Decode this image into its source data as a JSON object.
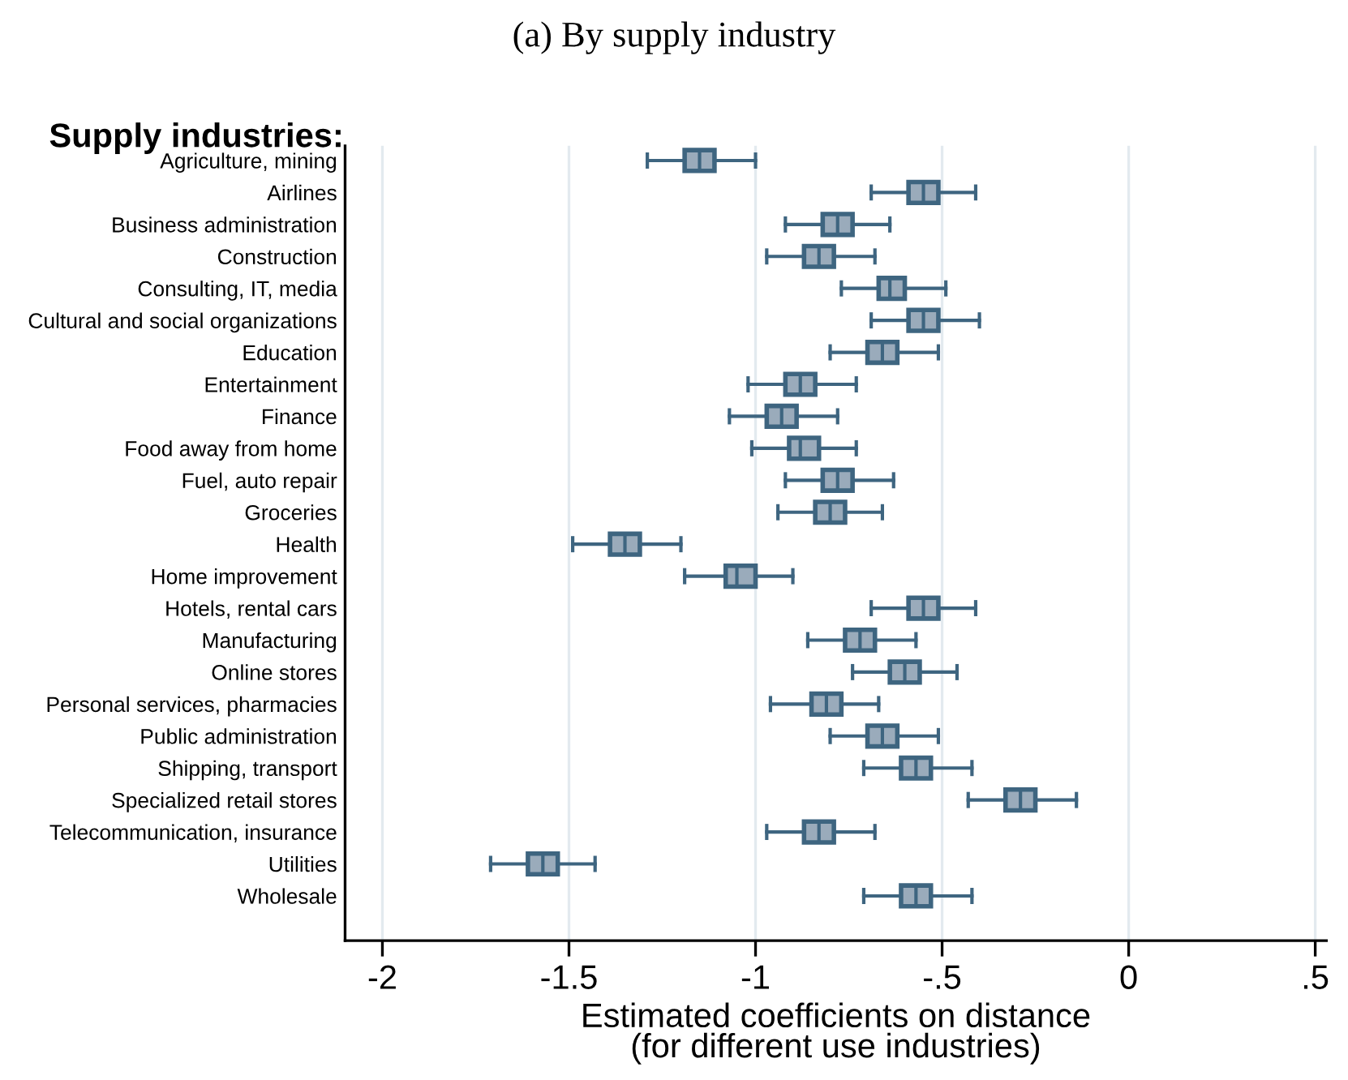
{
  "chart_data": {
    "type": "box",
    "orientation": "horizontal",
    "title": "(a) By supply industry",
    "xlabel": "Estimated coefficients on distance\n(for different use industries)",
    "annotations": [
      "Supply industries:"
    ],
    "categories": [
      "Agriculture, mining",
      "Airlines",
      "Business administration",
      "Construction",
      "Consulting, IT, media",
      "Cultural and social organizations",
      "Education",
      "Entertainment",
      "Finance",
      "Food away from home",
      "Fuel, auto repair",
      "Groceries",
      "Health",
      "Home improvement",
      "Hotels, rental cars",
      "Manufacturing",
      "Online stores",
      "Personal services, pharmacies",
      "Public administration",
      "Shipping, transport",
      "Specialized retail stores",
      "Telecommunication, insurance",
      "Utilities",
      "Wholesale"
    ],
    "boxes": [
      {
        "low": -1.29,
        "q1": -1.19,
        "median": -1.15,
        "q3": -1.11,
        "high": -1.0
      },
      {
        "low": -0.69,
        "q1": -0.59,
        "median": -0.55,
        "q3": -0.51,
        "high": -0.41
      },
      {
        "low": -0.92,
        "q1": -0.82,
        "median": -0.78,
        "q3": -0.74,
        "high": -0.64
      },
      {
        "low": -0.97,
        "q1": -0.87,
        "median": -0.83,
        "q3": -0.79,
        "high": -0.68
      },
      {
        "low": -0.77,
        "q1": -0.67,
        "median": -0.64,
        "q3": -0.6,
        "high": -0.49
      },
      {
        "low": -0.69,
        "q1": -0.59,
        "median": -0.55,
        "q3": -0.51,
        "high": -0.4
      },
      {
        "low": -0.8,
        "q1": -0.7,
        "median": -0.66,
        "q3": -0.62,
        "high": -0.51
      },
      {
        "low": -1.02,
        "q1": -0.92,
        "median": -0.88,
        "q3": -0.84,
        "high": -0.73
      },
      {
        "low": -1.07,
        "q1": -0.97,
        "median": -0.93,
        "q3": -0.89,
        "high": -0.78
      },
      {
        "low": -1.01,
        "q1": -0.91,
        "median": -0.88,
        "q3": -0.83,
        "high": -0.73
      },
      {
        "low": -0.92,
        "q1": -0.82,
        "median": -0.78,
        "q3": -0.74,
        "high": -0.63
      },
      {
        "low": -0.94,
        "q1": -0.84,
        "median": -0.8,
        "q3": -0.76,
        "high": -0.66
      },
      {
        "low": -1.49,
        "q1": -1.39,
        "median": -1.35,
        "q3": -1.31,
        "high": -1.2
      },
      {
        "low": -1.19,
        "q1": -1.08,
        "median": -1.05,
        "q3": -1.0,
        "high": -0.9
      },
      {
        "low": -0.69,
        "q1": -0.59,
        "median": -0.55,
        "q3": -0.51,
        "high": -0.41
      },
      {
        "low": -0.86,
        "q1": -0.76,
        "median": -0.72,
        "q3": -0.68,
        "high": -0.57
      },
      {
        "low": -0.74,
        "q1": -0.64,
        "median": -0.6,
        "q3": -0.56,
        "high": -0.46
      },
      {
        "low": -0.96,
        "q1": -0.85,
        "median": -0.81,
        "q3": -0.77,
        "high": -0.67
      },
      {
        "low": -0.8,
        "q1": -0.7,
        "median": -0.66,
        "q3": -0.62,
        "high": -0.51
      },
      {
        "low": -0.71,
        "q1": -0.61,
        "median": -0.57,
        "q3": -0.53,
        "high": -0.42
      },
      {
        "low": -0.43,
        "q1": -0.33,
        "median": -0.29,
        "q3": -0.25,
        "high": -0.14
      },
      {
        "low": -0.97,
        "q1": -0.87,
        "median": -0.83,
        "q3": -0.79,
        "high": -0.68
      },
      {
        "low": -1.71,
        "q1": -1.61,
        "median": -1.57,
        "q3": -1.53,
        "high": -1.43
      },
      {
        "low": -0.71,
        "q1": -0.61,
        "median": -0.57,
        "q3": -0.53,
        "high": -0.42
      }
    ],
    "color": "#9aabbb",
    "xlim": [
      -2.1,
      0.53
    ],
    "xticks": [
      -2,
      -1.5,
      -1,
      {
        "value": -0.5,
        "label": "-.5"
      },
      0,
      {
        "value": 0.5,
        "label": ".5"
      }
    ],
    "grid": "x"
  }
}
